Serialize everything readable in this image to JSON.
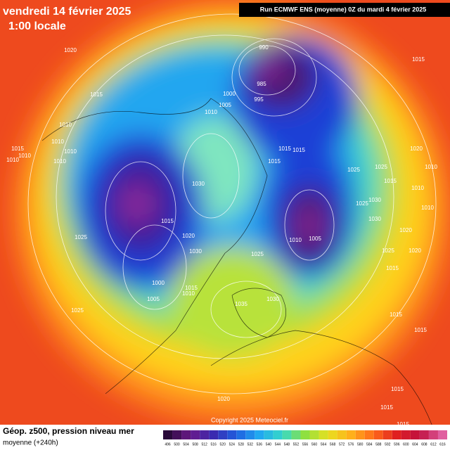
{
  "header": {
    "date": "vendredi 14 février 2025",
    "time": "1:00 locale",
    "run": "Run ECMWF ENS (moyenne) 0Z du mardi 4 février 2025"
  },
  "footer": {
    "title": "Géop. z500, pression niveau mer",
    "subtitle": "moyenne  (+240h)",
    "copyright": "Copyright 2025 Meteociel.fr"
  },
  "colorbar": {
    "ticks": [
      496,
      500,
      504,
      508,
      512,
      516,
      520,
      524,
      528,
      532,
      536,
      540,
      544,
      548,
      552,
      556,
      560,
      564,
      568,
      572,
      576,
      580,
      584,
      588,
      592,
      596,
      600,
      604,
      608,
      612,
      616
    ]
  },
  "isobar_labels": [
    1020,
    1015,
    1015,
    990,
    985,
    995,
    1000,
    1005,
    1010,
    1010,
    1010,
    1010,
    1015,
    1010,
    1010,
    1010,
    1030,
    1015,
    1020,
    1025,
    1030,
    1000,
    1005,
    1015,
    1010,
    1025,
    1015,
    1015,
    1015,
    1025,
    1025,
    1020,
    1010,
    1015,
    1010,
    1010,
    1025,
    1030,
    1030,
    1020,
    1010,
    1005,
    1025,
    1025,
    1020,
    1015,
    1035,
    1030,
    1015,
    1015,
    1020,
    1015,
    1015,
    1015
  ]
}
